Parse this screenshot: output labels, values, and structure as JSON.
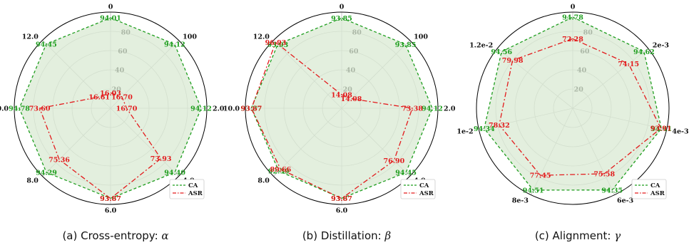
{
  "colors": {
    "ca": "#1f9e1f",
    "asr": "#e31a1c",
    "fill": "#d9ead3",
    "grid": "#bdbdbd",
    "frame": "#000000"
  },
  "chart_data": [
    {
      "type": "radar",
      "caption": "(a) Cross-entropy: ",
      "caption_symbol": "α",
      "categories": [
        "0",
        "100",
        "2.0",
        "4.0",
        "6.0",
        "8.0",
        "10.0",
        "12.0"
      ],
      "r_ticks": [
        "20",
        "40",
        "60",
        "80"
      ],
      "rlim": [
        0,
        100
      ],
      "legend": "lower-right",
      "series": [
        {
          "name": "CA",
          "values": [
            94.01,
            94.12,
            94.12,
            94.4,
            93.67,
            94.29,
            94.78,
            94.45
          ],
          "labels": [
            "94.01",
            "94.12",
            "94.12",
            "94.40",
            "93.67",
            "94.29",
            "94.78",
            "94.45"
          ]
        },
        {
          "name": "ASR",
          "values": [
            16.03,
            16.7,
            16.7,
            73.93,
            93.87,
            75.36,
            73.6,
            16.61
          ],
          "labels": [
            "16.03",
            "16.70",
            "16.70",
            "73.93",
            "93.87",
            "75.36",
            "73.60",
            "16.61"
          ]
        }
      ]
    },
    {
      "type": "radar",
      "caption": "(b) Distillation: ",
      "caption_symbol": "β",
      "categories": [
        "0",
        "100",
        "2.0",
        "4.0",
        "6.0",
        "8.0",
        "10.0",
        "12.0"
      ],
      "r_ticks": [
        "20",
        "40",
        "60",
        "80"
      ],
      "rlim": [
        0,
        100
      ],
      "legend": "lower-right",
      "series": [
        {
          "name": "CA",
          "values": [
            93.85,
            93.85,
            94.12,
            94.45,
            93.67,
            92.39,
            93.87,
            93.93
          ],
          "labels": [
            "93.85",
            "93.85",
            "94.12",
            "94.45",
            "93.67",
            "92.39",
            "93.87",
            "93.93"
          ]
        },
        {
          "name": "ASR",
          "values": [
            14.08,
            14.08,
            73.38,
            76.9,
            93.87,
            89.66,
            93.67,
            96.93
          ],
          "labels": [
            "14.08",
            "14.08",
            "73.38",
            "76.90",
            "93.87",
            "89.66",
            "93.67",
            "96.93"
          ]
        }
      ]
    },
    {
      "type": "radar",
      "caption": "(c) Alignment: ",
      "caption_symbol": "γ",
      "categories": [
        "0",
        "2e-3",
        "4e-3",
        "6e-3",
        "8e-3",
        "1e-2",
        "1.2e-2"
      ],
      "r_ticks": [
        "20",
        "40",
        "60",
        "80"
      ],
      "rlim": [
        0,
        100
      ],
      "legend": "lower-right",
      "series": [
        {
          "name": "CA",
          "values": [
            94.78,
            94.62,
            94.41,
            94.35,
            94.51,
            94.34,
            94.56
          ],
          "labels": [
            "94.78",
            "94.62",
            "94.41",
            "94.35",
            "94.51",
            "94.34",
            "94.56"
          ]
        },
        {
          "name": "ASR",
          "values": [
            72.28,
            74.15,
            93.91,
            75.58,
            77.45,
            78.32,
            79.98
          ],
          "labels": [
            "72.28",
            "74.15",
            "93.91",
            "75.58",
            "77.45",
            "78.32",
            "79.98"
          ]
        }
      ]
    }
  ]
}
